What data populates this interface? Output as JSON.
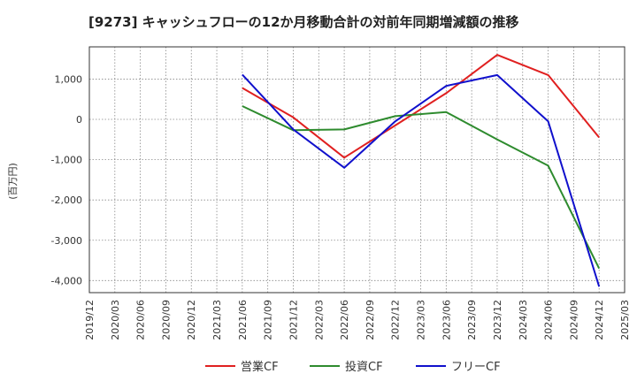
{
  "chart_data": {
    "type": "line",
    "title": "[9273]  キャッシュフローの12か月移動合計の対前年同期増減額の推移",
    "ylabel": "(百万円)",
    "xlabel": "",
    "ylim": [
      -4300,
      1800
    ],
    "yticks": [
      1000,
      0,
      -1000,
      -2000,
      -3000,
      -4000
    ],
    "ytick_labels": [
      "1,000",
      "0",
      "-1,000",
      "-2,000",
      "-3,000",
      "-4,000"
    ],
    "x_ticks": [
      "2019/12",
      "2020/03",
      "2020/06",
      "2020/09",
      "2020/12",
      "2021/03",
      "2021/06",
      "2021/09",
      "2021/12",
      "2022/03",
      "2022/06",
      "2022/09",
      "2022/12",
      "2023/03",
      "2023/06",
      "2023/09",
      "2023/12",
      "2024/03",
      "2024/06",
      "2024/09",
      "2024/12",
      "2025/03"
    ],
    "grid": true,
    "legend_position": "bottom",
    "series": [
      {
        "name": "営業CF",
        "color": "#e02020",
        "x": [
          "2021/06",
          "2021/12",
          "2022/06",
          "2022/12",
          "2023/06",
          "2023/12",
          "2024/06",
          "2024/12"
        ],
        "values": [
          780,
          50,
          -950,
          -150,
          650,
          1600,
          1100,
          -450
        ]
      },
      {
        "name": "投資CF",
        "color": "#2e8b2e",
        "x": [
          "2021/06",
          "2021/12",
          "2022/06",
          "2022/12",
          "2023/06",
          "2023/12",
          "2024/06",
          "2024/12"
        ],
        "values": [
          330,
          -270,
          -250,
          80,
          180,
          -500,
          -1150,
          -3700
        ]
      },
      {
        "name": "フリーCF",
        "color": "#1010cc",
        "x": [
          "2021/06",
          "2021/12",
          "2022/06",
          "2022/12",
          "2023/06",
          "2023/12",
          "2024/06",
          "2024/12"
        ],
        "values": [
          1110,
          -250,
          -1200,
          -50,
          830,
          1100,
          -50,
          -4150
        ]
      }
    ]
  }
}
